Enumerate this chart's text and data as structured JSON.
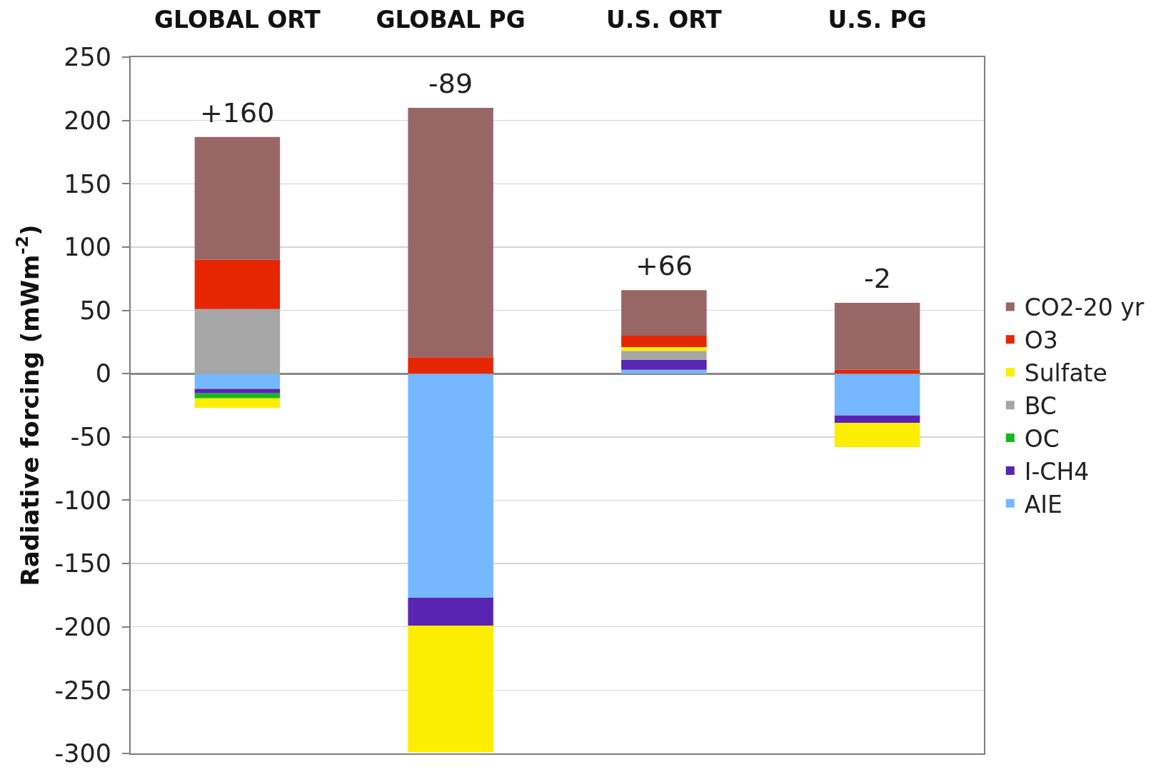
{
  "chart_data": {
    "type": "bar",
    "ylabel": "Radiative forcing (mWm$^{-2}$)",
    "categories": [
      "GLOBAL ORT",
      "GLOBAL PG",
      "U.S. ORT",
      "U.S. PG"
    ],
    "series": [
      {
        "name": "AIE",
        "color": "#75b8ff",
        "values": [
          -12,
          -177,
          3,
          -33
        ]
      },
      {
        "name": "I-CH4",
        "color": "#5924b2",
        "values": [
          -3.5,
          -22,
          8,
          -6
        ]
      },
      {
        "name": "OC",
        "color": "#18b81c",
        "values": [
          -4,
          null,
          null,
          null
        ]
      },
      {
        "name": "BC",
        "color": "#a6a6a6",
        "values": [
          51,
          null,
          7,
          null
        ]
      },
      {
        "name": "Sulfate",
        "color": "#fcee00",
        "values": [
          -7.5,
          -100,
          3,
          -19
        ]
      },
      {
        "name": "O3",
        "color": "#e52600",
        "values": [
          39,
          13,
          9,
          3
        ]
      },
      {
        "name": "CO2-20 yr",
        "color": "#996666",
        "values": [
          97,
          197,
          36,
          53
        ]
      }
    ],
    "stacked": true,
    "ylim": [
      -300,
      250
    ],
    "yticks": [
      250,
      200,
      150,
      100,
      50,
      0,
      -50,
      -100,
      -150,
      -200,
      -250,
      -300
    ],
    "grid": "y",
    "legend": "right",
    "totals": [
      "+160",
      "-89",
      "+66",
      "-2"
    ]
  }
}
